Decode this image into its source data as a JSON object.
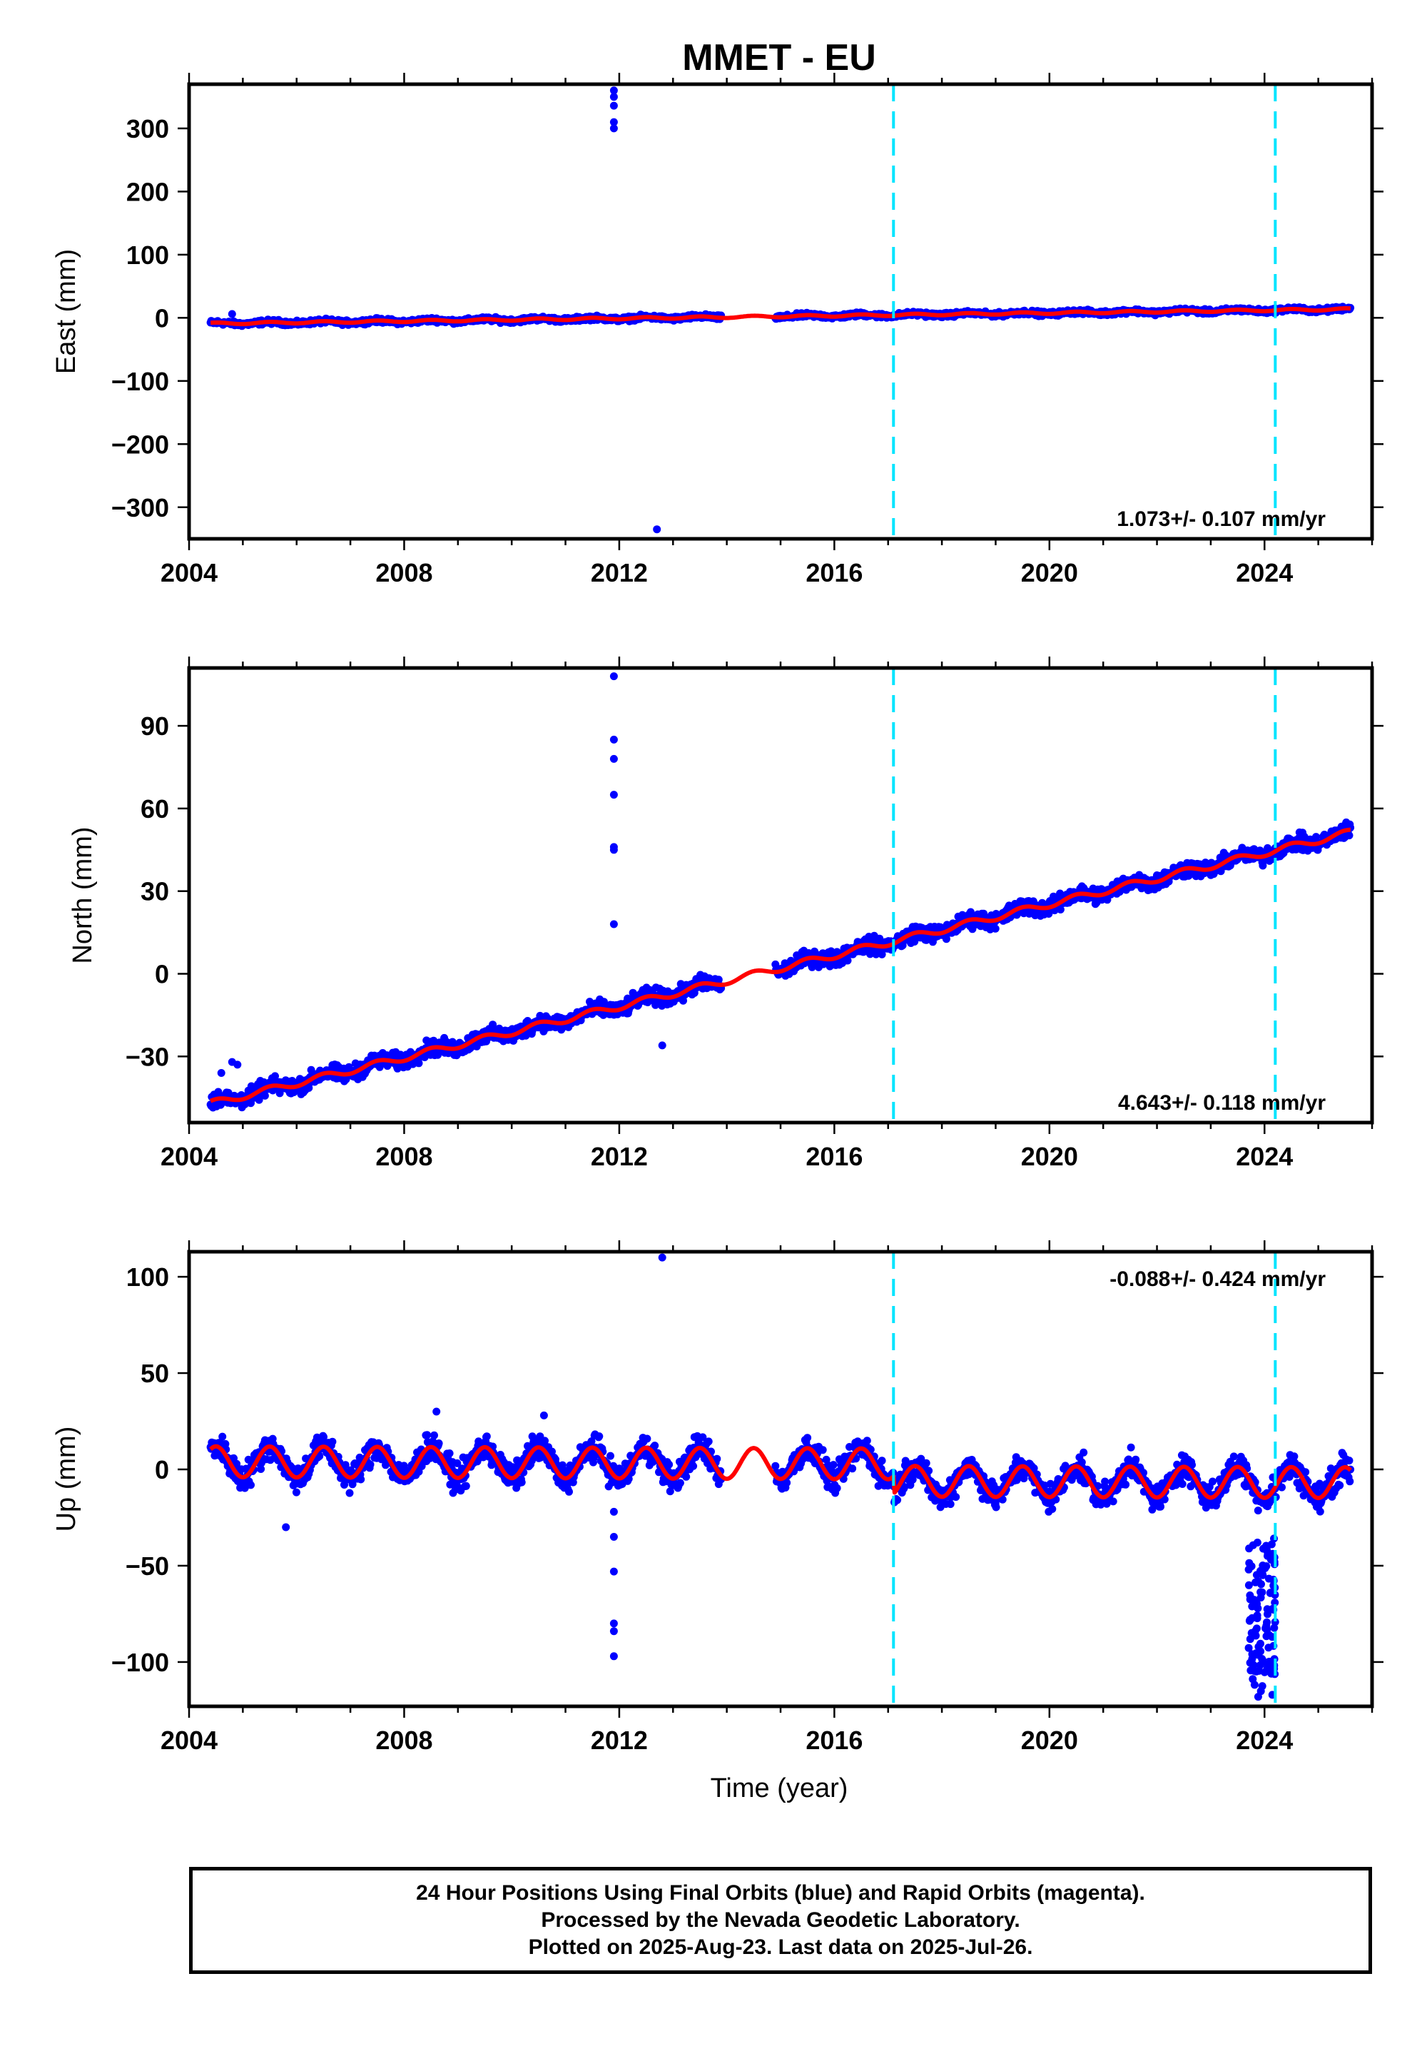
{
  "title": "MMET - EU",
  "xlabel": "Time (year)",
  "colors": {
    "final_orbits": "#0000ff",
    "model_fit": "#ff0000",
    "offset_marker": "#00e5ff"
  },
  "footer": {
    "line1": "24 Hour Positions Using Final Orbits (blue) and Rapid Orbits (magenta).",
    "line2": "Processed by the Nevada Geodetic Laboratory.",
    "line3": "Plotted on 2025-Aug-23. Last data on 2025-Jul-26."
  },
  "chart_data": [
    {
      "type": "scatter",
      "component": "east",
      "ylabel": "East (mm)",
      "rate_label": "1.073+/- 0.107 mm/yr",
      "rate_position": "bottom-right",
      "xlim": [
        2004,
        2026
      ],
      "ylim": [
        -350,
        370
      ],
      "xticks": [
        2004,
        2008,
        2012,
        2016,
        2020,
        2024
      ],
      "yticks": [
        300,
        200,
        100,
        0,
        -100,
        -200,
        -300
      ],
      "ytick_labels": [
        "300",
        "200",
        "100",
        "0",
        "−100",
        "−200",
        "−300"
      ],
      "data_start": 2004.4,
      "data_end": 2025.6,
      "gap": [
        2013.9,
        2014.9
      ],
      "trend": {
        "value_at_2004": -9.5,
        "rate_mm_per_yr": 1.073
      },
      "seasonal_amplitude_mm": 1.5,
      "scatter_spread_mm": 3,
      "fit_line": "red",
      "offsets": [
        2017.1,
        2024.2
      ],
      "outliers": [
        [
          2011.9,
          360
        ],
        [
          2011.9,
          350
        ],
        [
          2011.9,
          336
        ],
        [
          2011.9,
          310
        ],
        [
          2011.9,
          300
        ],
        [
          2012.7,
          -335
        ],
        [
          2004.8,
          6
        ]
      ]
    },
    {
      "type": "scatter",
      "component": "north",
      "ylabel": "North (mm)",
      "rate_label": "4.643+/- 0.118 mm/yr",
      "rate_position": "bottom-right",
      "xlim": [
        2004,
        2026
      ],
      "ylim": [
        -54,
        111
      ],
      "xticks": [
        2004,
        2008,
        2012,
        2016,
        2020,
        2024
      ],
      "yticks": [
        90,
        60,
        30,
        0,
        -30
      ],
      "ytick_labels": [
        "90",
        "60",
        "30",
        "0",
        "−30"
      ],
      "data_start": 2004.4,
      "data_end": 2025.6,
      "gap": [
        2013.9,
        2014.9
      ],
      "trend": {
        "value_at_2004": -49,
        "rate_mm_per_yr": 4.643
      },
      "seasonal_amplitude_mm": 1.2,
      "scatter_spread_mm": 2.5,
      "fit_line": "red",
      "offsets": [
        2017.1,
        2024.2
      ],
      "outliers": [
        [
          2011.9,
          108
        ],
        [
          2011.9,
          85
        ],
        [
          2011.9,
          78
        ],
        [
          2011.9,
          65
        ],
        [
          2011.9,
          46
        ],
        [
          2011.9,
          45
        ],
        [
          2011.9,
          18
        ],
        [
          2012.8,
          -26
        ],
        [
          2004.8,
          -32
        ],
        [
          2004.9,
          -33
        ],
        [
          2004.6,
          -36
        ]
      ]
    },
    {
      "type": "scatter",
      "component": "up",
      "ylabel": "Up (mm)",
      "rate_label": "-0.088+/- 0.424 mm/yr",
      "rate_position": "top-right",
      "xlim": [
        2004,
        2026
      ],
      "ylim": [
        -123,
        113
      ],
      "xticks": [
        2004,
        2008,
        2012,
        2016,
        2020,
        2024
      ],
      "yticks": [
        100,
        50,
        0,
        -50,
        -100
      ],
      "ytick_labels": [
        "100",
        "50",
        "0",
        "−50",
        "−100"
      ],
      "data_start": 2004.4,
      "data_end": 2025.6,
      "gap": [
        2013.9,
        2014.9
      ],
      "trend": {
        "value_at_2004": 4,
        "rate_mm_per_yr": -0.088
      },
      "seasonal_amplitude_mm": 8,
      "scatter_spread_mm": 6,
      "fit_line": "red",
      "offsets": [
        2017.1,
        2024.2
      ],
      "level_shift_after_2017": -9,
      "outliers": [
        [
          2012.8,
          110
        ],
        [
          2005.8,
          -30
        ],
        [
          2011.9,
          -22
        ],
        [
          2011.9,
          -35
        ],
        [
          2011.9,
          -53
        ],
        [
          2011.9,
          -80
        ],
        [
          2011.9,
          -84
        ],
        [
          2011.9,
          -97
        ],
        [
          2008.6,
          30
        ],
        [
          2010.6,
          28
        ]
      ],
      "anomaly_cluster": {
        "x_range": [
          2023.7,
          2024.2
        ],
        "y_range": [
          -120,
          -35
        ],
        "count": 110
      }
    }
  ]
}
